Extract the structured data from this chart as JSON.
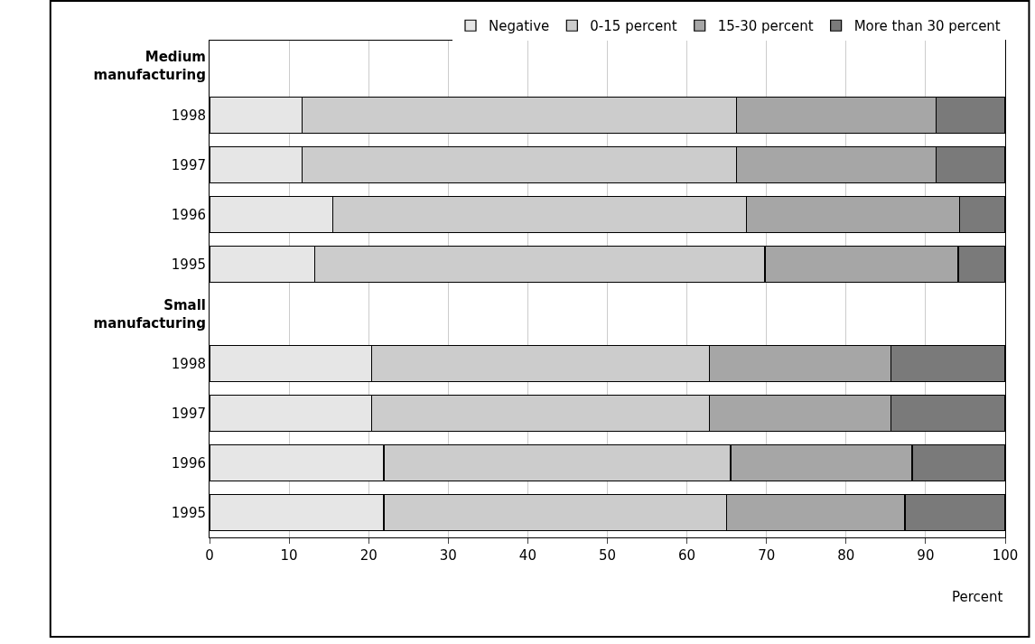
{
  "chart_data": {
    "type": "bar",
    "orientation": "horizontal",
    "stacked": true,
    "categories": [
      "Medium manufacturing",
      "1998",
      "1997",
      "1996",
      "1995",
      "Small manufacturing",
      "1998",
      "1997",
      "1996",
      "1995"
    ],
    "series": [
      {
        "name": "Negative",
        "color": "#e6e6e6",
        "values": [
          null,
          11.6,
          11.6,
          15.5,
          13.2,
          null,
          20.4,
          20.4,
          21.9,
          21.9
        ]
      },
      {
        "name": "0-15 percent",
        "color": "#cccccc",
        "values": [
          null,
          54.6,
          54.6,
          52.0,
          56.6,
          null,
          42.4,
          42.4,
          43.6,
          43.1
        ]
      },
      {
        "name": "15-30 percent",
        "color": "#a6a6a6",
        "values": [
          null,
          25.1,
          25.1,
          26.8,
          24.3,
          null,
          22.8,
          22.8,
          22.8,
          22.4
        ]
      },
      {
        "name": "More than 30 percent",
        "color": "#7a7a7a",
        "values": [
          null,
          8.7,
          8.7,
          5.7,
          5.9,
          null,
          14.4,
          14.4,
          11.7,
          12.6
        ]
      }
    ],
    "xlabel": "Percent",
    "xlim": [
      0,
      100
    ],
    "xticks": [
      0,
      10,
      20,
      30,
      40,
      50,
      60,
      70,
      80,
      90,
      100
    ],
    "grid": "x",
    "legend": "top right"
  }
}
